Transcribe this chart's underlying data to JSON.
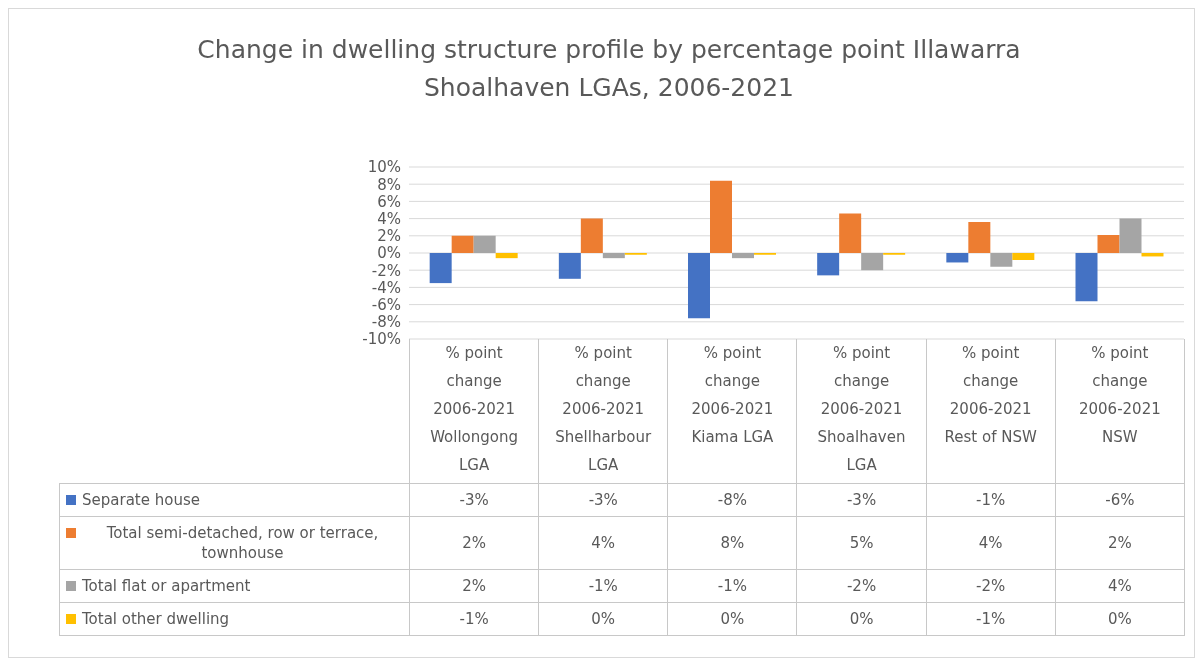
{
  "chart_data": {
    "type": "bar",
    "title": "Change in dwelling structure profile by percentage point Illawarra Shoalhaven LGAs, 2006-2021",
    "categories": [
      "% point change 2006-2021\nWollongong LGA",
      "% point change 2006-2021\nShellharbour LGA",
      "% point change 2006-2021\nKiama LGA",
      "% point change 2006-2021\nShoalhaven LGA",
      "% point change 2006-2021\nRest of NSW",
      "% point change 2006-2021\nNSW"
    ],
    "series": [
      {
        "name": "Separate house",
        "color": "#4472c4",
        "values": [
          -3.5,
          -3.0,
          -7.6,
          -2.6,
          -1.1,
          -5.6
        ],
        "value_labels": [
          "-3%",
          "-3%",
          "-8%",
          "-3%",
          "-1%",
          "-6%"
        ]
      },
      {
        "name": "Total semi-detached, row or terrace, townhouse",
        "color": "#ed7d31",
        "values": [
          2.0,
          4.0,
          8.4,
          4.6,
          3.6,
          2.1
        ],
        "value_labels": [
          "2%",
          "4%",
          "8%",
          "5%",
          "4%",
          "2%"
        ]
      },
      {
        "name": "Total flat or apartment",
        "color": "#a5a5a5",
        "values": [
          2.0,
          -0.6,
          -0.6,
          -2.0,
          -1.6,
          4.0
        ],
        "value_labels": [
          "2%",
          "-1%",
          "-1%",
          "-2%",
          "-2%",
          "4%"
        ]
      },
      {
        "name": "Total other dwelling",
        "color": "#ffc000",
        "values": [
          -0.6,
          -0.2,
          -0.2,
          -0.2,
          -0.8,
          -0.4
        ],
        "value_labels": [
          "-1%",
          "0%",
          "0%",
          "0%",
          "-1%",
          "0%"
        ]
      }
    ],
    "ylim": [
      -10,
      10
    ],
    "yticks": [
      {
        "value": -10,
        "label": "-10%"
      },
      {
        "value": -8,
        "label": "-8%"
      },
      {
        "value": -6,
        "label": "-6%"
      },
      {
        "value": -4,
        "label": "-4%"
      },
      {
        "value": -2,
        "label": "-2%"
      },
      {
        "value": 0,
        "label": "0%"
      },
      {
        "value": 2,
        "label": "2%"
      },
      {
        "value": 4,
        "label": "4%"
      },
      {
        "value": 6,
        "label": "6%"
      },
      {
        "value": 8,
        "label": "8%"
      },
      {
        "value": 10,
        "label": "10%"
      }
    ],
    "grid": "y",
    "legend": "bottom"
  }
}
